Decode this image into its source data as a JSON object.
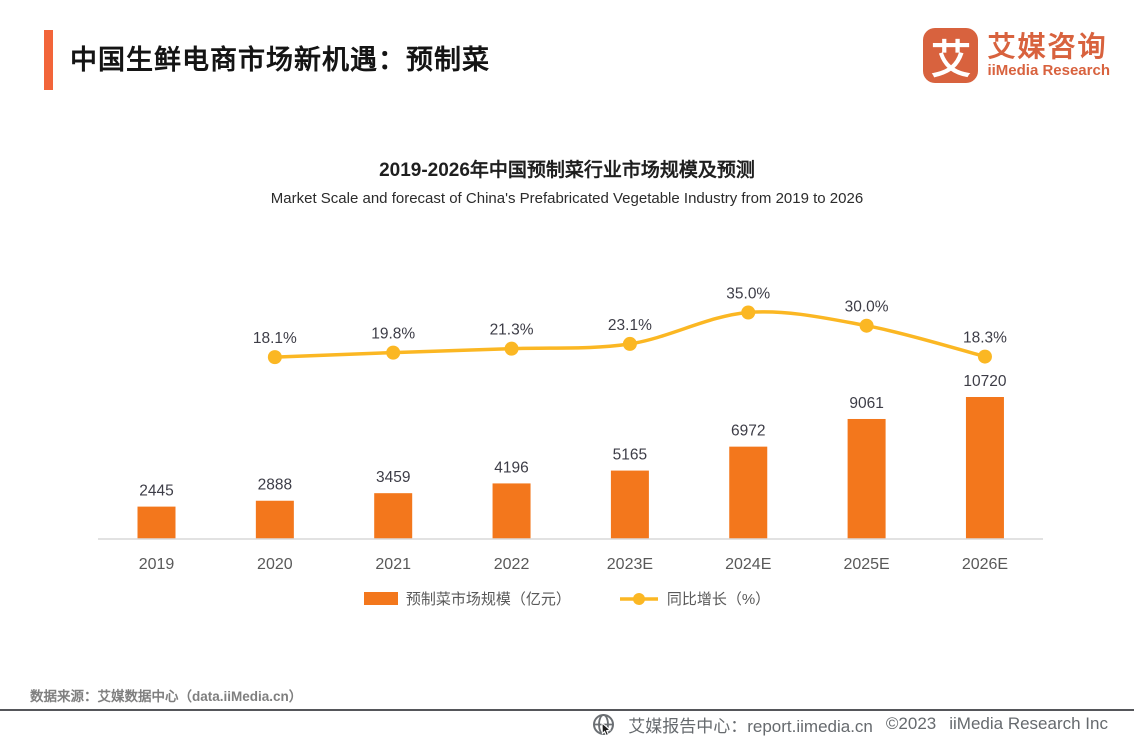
{
  "header": {
    "title": "中国生鲜电商市场新机遇：预制菜",
    "logo": {
      "glyph": "艾",
      "brand_cn": "艾媒咨询",
      "brand_en": "iiMedia Research"
    }
  },
  "chart_data": {
    "type": "bar",
    "title": "2019-2026年中国预制菜行业市场规模及预测",
    "subtitle": "Market Scale and forecast of China's Prefabricated Vegetable Industry from 2019 to 2026",
    "categories": [
      "2019",
      "2020",
      "2021",
      "2022",
      "2023E",
      "2024E",
      "2025E",
      "2026E"
    ],
    "series": [
      {
        "name": "预制菜市场规模（亿元）",
        "type": "bar",
        "values": [
          2445,
          2888,
          3459,
          4196,
          5165,
          6972,
          9061,
          10720
        ]
      },
      {
        "name": "同比增长（%）",
        "type": "line",
        "values": [
          null,
          18.1,
          19.8,
          21.3,
          23.1,
          35.0,
          30.0,
          18.3
        ]
      }
    ],
    "xlabel": "",
    "ylabel": "",
    "grid": false,
    "legend_position": "bottom",
    "value_labels_shown": true
  },
  "footer": {
    "source": "数据来源：艾媒数据中心（data.iiMedia.cn）",
    "report_center": "艾媒报告中心：report.iimedia.cn",
    "copyright": "©2023",
    "company": "iiMedia Research Inc"
  },
  "colors": {
    "accent_bar": "#F2653A",
    "bar": "#F3771C",
    "line": "#FBB723",
    "brand": "#D8623E",
    "value_label": "#3d3d47",
    "axis_label": "#595959",
    "axis_line": "#D9D9D9"
  }
}
